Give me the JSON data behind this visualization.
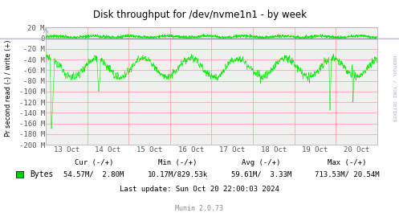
{
  "title": "Disk throughput for /dev/nvme1n1 - by week",
  "ylabel": "Pr second read (-) / write (+)",
  "bg_color": "#ffffff",
  "plot_bg_color": "#f0f0f0",
  "grid_color": "#ff9999",
  "line_color": "#00ee00",
  "zero_line_color": "#000000",
  "border_color": "#aaaaaa",
  "arrow_color": "#aaaacc",
  "side_label_color": "#aaaacc",
  "tick_label_color": "#555555",
  "ylim_min": -200,
  "ylim_max": 20,
  "yticks": [
    20,
    0,
    -20,
    -40,
    -60,
    -80,
    -100,
    -120,
    -140,
    -160,
    -180,
    -200
  ],
  "ytick_labels": [
    "20 M",
    "0",
    "-20 M",
    "-40 M",
    "-60 M",
    "-80 M",
    "-100 M",
    "-120 M",
    "-140 M",
    "-160 M",
    "-180 M",
    "-200 M"
  ],
  "xstart": 1728691200,
  "xend": 1729468803,
  "xtick_labels": [
    "13 Oct",
    "14 Oct",
    "15 Oct",
    "16 Oct",
    "17 Oct",
    "18 Oct",
    "19 Oct",
    "20 Oct"
  ],
  "side_label": "RRDTOOL / TOBI OETIKER",
  "legend_color": "#00cc00",
  "legend_label": "Bytes",
  "footer_cur": "Cur (-/+)",
  "footer_min": "Min (-/+)",
  "footer_avg": "Avg (-/+)",
  "footer_max": "Max (-/+)",
  "footer_bytes": "54.57M/  2.80M",
  "footer_bytes_min": "10.17M/829.53k",
  "footer_bytes_avg": "59.61M/  3.33M",
  "footer_bytes_max": "713.53M/ 20.54M",
  "footer_lastupdate": "Last update: Sun Oct 20 22:00:03 2024",
  "footer_munin": "Munin 2.0.73"
}
